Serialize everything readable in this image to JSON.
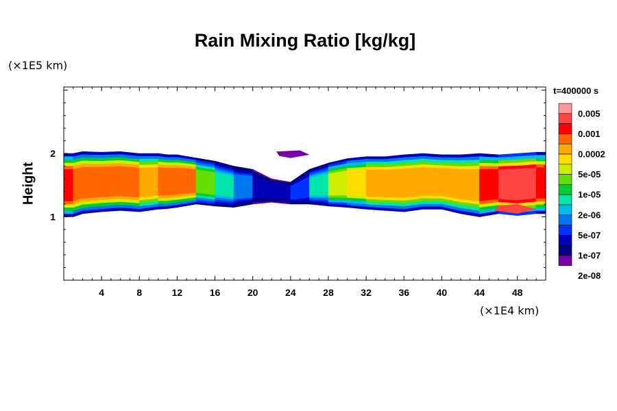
{
  "chart_data": {
    "type": "heatmap",
    "title": "Rain Mixing Ratio [kg/kg]",
    "ylabel": "Height",
    "xlabel": "",
    "x_unit": "(×1E4 km)",
    "y_unit": "(×1E5 km)",
    "time_label": "t=400000 s",
    "xlim": [
      0,
      51
    ],
    "ylim": [
      0,
      3.05
    ],
    "x_ticks": [
      4,
      8,
      12,
      16,
      20,
      24,
      28,
      32,
      36,
      40,
      44,
      48
    ],
    "y_ticks": [
      1,
      2
    ],
    "colorbar": {
      "colors": [
        "#ff9999",
        "#ff4444",
        "#ff0000",
        "#ff6600",
        "#ffaa00",
        "#ffdd00",
        "#ccee00",
        "#66dd00",
        "#00cc33",
        "#00e6aa",
        "#00bbee",
        "#0077ee",
        "#0033ff",
        "#0000bb",
        "#000080",
        "#7700aa"
      ],
      "labels": [
        "0.005",
        "0.001",
        "0.0002",
        "5e-05",
        "1e-05",
        "2e-06",
        "5e-07",
        "1e-07",
        "2e-08"
      ]
    },
    "columns": [
      {
        "x": 0,
        "bottom": 1.0,
        "top": 2.0,
        "level": 2
      },
      {
        "x": 1,
        "bottom": 1.0,
        "top": 2.0,
        "level": 3
      },
      {
        "x": 2,
        "bottom": 1.05,
        "top": 2.03,
        "level": 3
      },
      {
        "x": 4,
        "bottom": 1.08,
        "top": 2.02,
        "level": 3
      },
      {
        "x": 6,
        "bottom": 1.1,
        "top": 2.03,
        "level": 3
      },
      {
        "x": 8,
        "bottom": 1.08,
        "top": 2.0,
        "level": 4
      },
      {
        "x": 10,
        "bottom": 1.12,
        "top": 2.0,
        "level": 4
      },
      {
        "x": 11,
        "bottom": 1.13,
        "top": 1.98,
        "level": 3
      },
      {
        "x": 12,
        "bottom": 1.15,
        "top": 1.98,
        "level": 3
      },
      {
        "x": 14,
        "bottom": 1.2,
        "top": 1.93,
        "level": 7
      },
      {
        "x": 16,
        "bottom": 1.17,
        "top": 1.88,
        "level": 9
      },
      {
        "x": 18,
        "bottom": 1.15,
        "top": 1.8,
        "level": 11
      },
      {
        "x": 20,
        "bottom": 1.2,
        "top": 1.75,
        "level": 13
      },
      {
        "x": 22,
        "bottom": 1.23,
        "top": 1.6,
        "level": 14
      },
      {
        "x": 24,
        "bottom": 1.2,
        "top": 1.55,
        "level": 13
      },
      {
        "x": 26,
        "bottom": 1.2,
        "top": 1.75,
        "level": 12
      },
      {
        "x": 28,
        "bottom": 1.17,
        "top": 1.85,
        "level": 9
      },
      {
        "x": 30,
        "bottom": 1.15,
        "top": 1.92,
        "level": 6
      },
      {
        "x": 32,
        "bottom": 1.12,
        "top": 1.95,
        "level": 5
      },
      {
        "x": 34,
        "bottom": 1.1,
        "top": 1.95,
        "level": 4
      },
      {
        "x": 36,
        "bottom": 1.08,
        "top": 1.98,
        "level": 4
      },
      {
        "x": 38,
        "bottom": 1.12,
        "top": 2.0,
        "level": 4
      },
      {
        "x": 40,
        "bottom": 1.12,
        "top": 1.98,
        "level": 4
      },
      {
        "x": 42,
        "bottom": 1.05,
        "top": 1.98,
        "level": 4
      },
      {
        "x": 44,
        "bottom": 1.0,
        "top": 2.0,
        "level": 5
      },
      {
        "x": 46,
        "bottom": 1.05,
        "top": 1.98,
        "level": 2
      },
      {
        "x": 48,
        "bottom": 1.02,
        "top": 2.0,
        "level": 1
      },
      {
        "x": 50,
        "bottom": 1.05,
        "top": 2.02,
        "level": 2
      },
      {
        "x": 51,
        "bottom": 1.05,
        "top": 2.02,
        "level": 2
      }
    ]
  }
}
